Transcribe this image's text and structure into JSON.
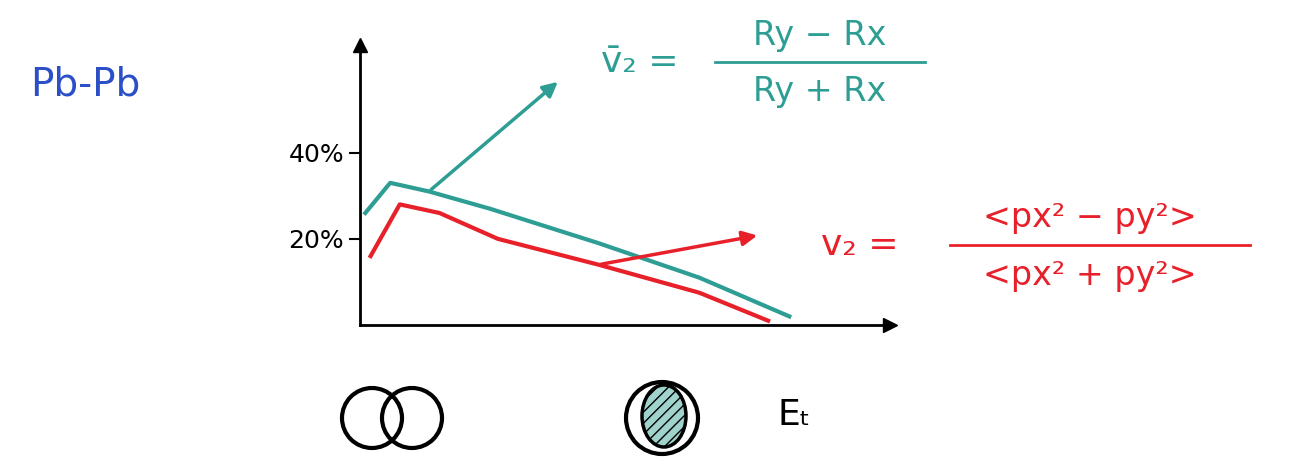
{
  "chart_data": {
    "type": "line",
    "title": "Pb-Pb",
    "x_label": "Eₜ",
    "xlim": [
      0,
      100
    ],
    "xticks": [],
    "ylim": [
      0,
      65
    ],
    "yticks": [
      {
        "value": 20,
        "label": "20%"
      },
      {
        "value": 40,
        "label": "40%"
      }
    ],
    "tick_labels": "y",
    "grid": false,
    "series": [
      {
        "color": "#2e9e94",
        "x": [
          1,
          5.7,
          13,
          24.5,
          45,
          64,
          81
        ],
        "values": [
          26,
          33,
          31,
          27,
          19,
          11,
          2
        ],
        "annotation": {
          "lhs": "v̄₂ =",
          "numerator": "Ry − Rx",
          "denominator": "Ry + Rx"
        }
      },
      {
        "color": "#e8202a",
        "x": [
          2,
          7.5,
          15,
          26,
          45,
          64,
          77
        ],
        "values": [
          16,
          28,
          26,
          20,
          14,
          7.5,
          1
        ],
        "annotation": {
          "lhs": "v₂ =",
          "numerator": "<px² − py²>",
          "denominator": "<px² + py²>"
        }
      }
    ]
  }
}
